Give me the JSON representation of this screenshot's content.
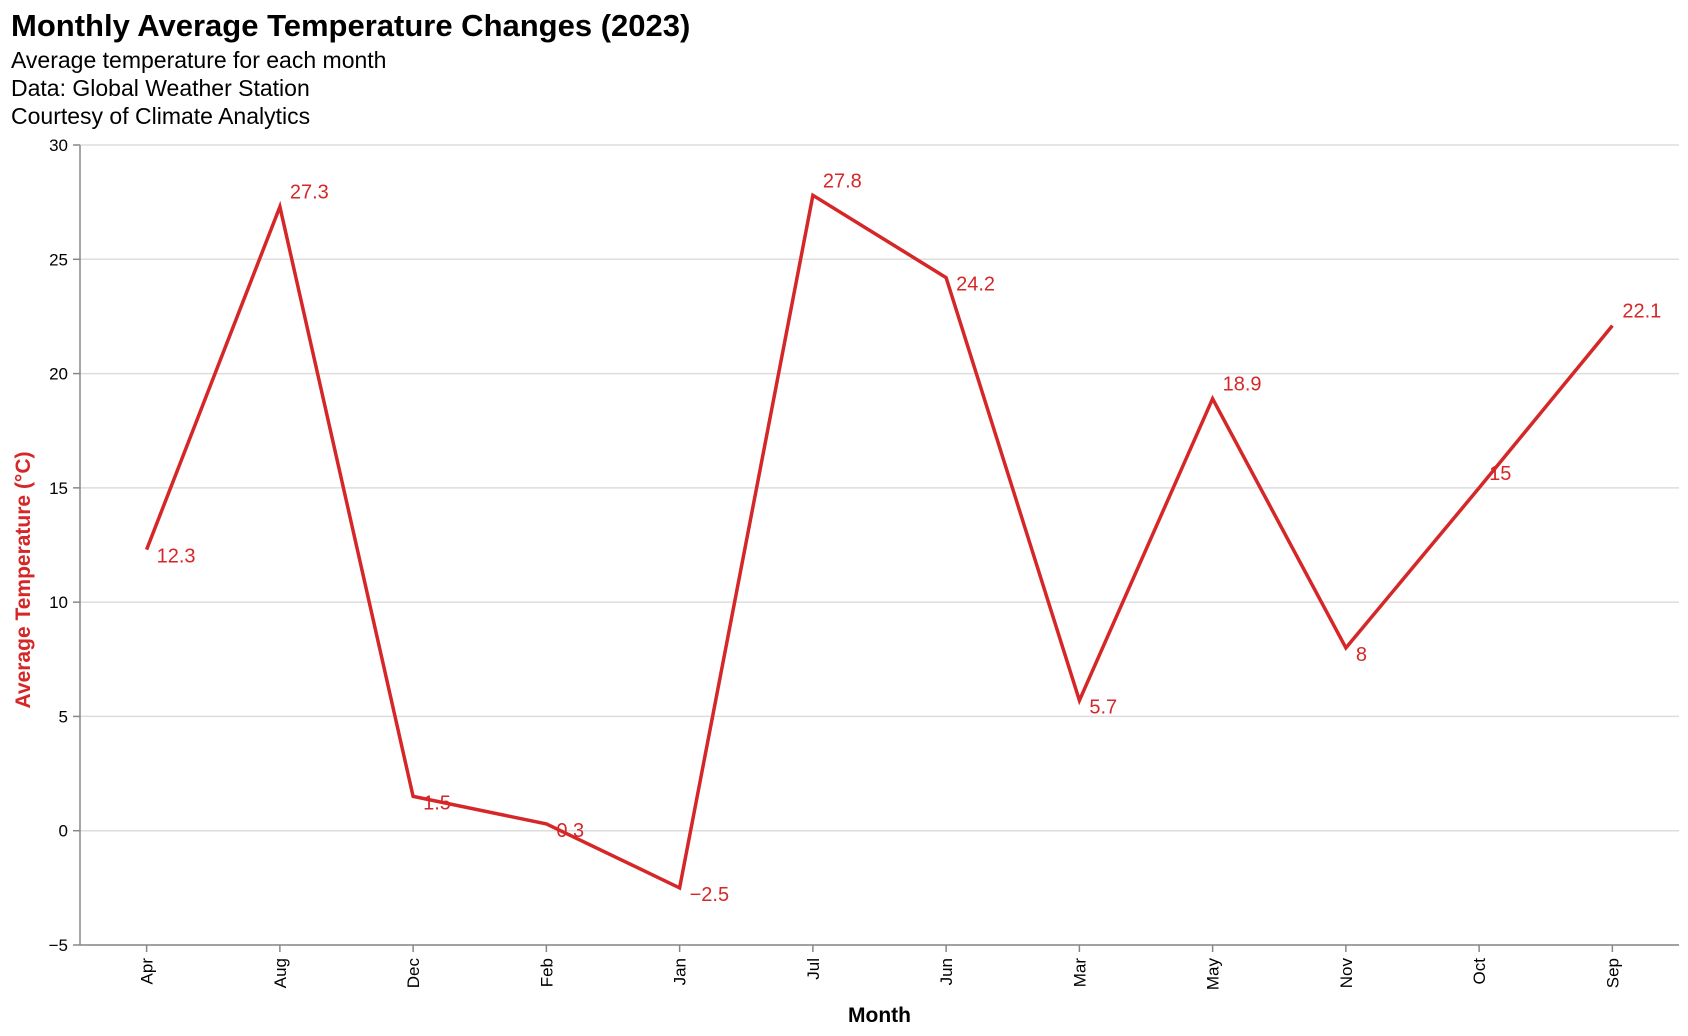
{
  "title": "Monthly Average Temperature Changes (2023)",
  "subtitles": [
    "Average temperature for each month",
    "Data: Global Weather Station",
    "Courtesy of Climate Analytics"
  ],
  "colors": {
    "line": "#d62728",
    "grid": "#dddddd",
    "axis": "#888888"
  },
  "chart_data": {
    "type": "line",
    "categories": [
      "Apr",
      "Aug",
      "Dec",
      "Feb",
      "Jan",
      "Jul",
      "Jun",
      "Mar",
      "May",
      "Nov",
      "Oct",
      "Sep"
    ],
    "values": [
      12.3,
      27.3,
      1.5,
      0.3,
      -2.5,
      27.8,
      24.2,
      5.7,
      18.9,
      8,
      15,
      22.1
    ],
    "value_labels": [
      "12.3",
      "27.3",
      "1.5",
      "0.3",
      "−2.5",
      "27.8",
      "24.2",
      "5.7",
      "18.9",
      "8",
      "15",
      "22.1"
    ],
    "xlabel": "Month",
    "ylabel": "Average Temperature (°C)",
    "ylim": [
      -5,
      30
    ],
    "yticks": [
      -5,
      0,
      5,
      10,
      15,
      20,
      25,
      30
    ],
    "ytick_labels": [
      "−5",
      "0",
      "5",
      "10",
      "15",
      "20",
      "25",
      "30"
    ],
    "grid": true
  }
}
